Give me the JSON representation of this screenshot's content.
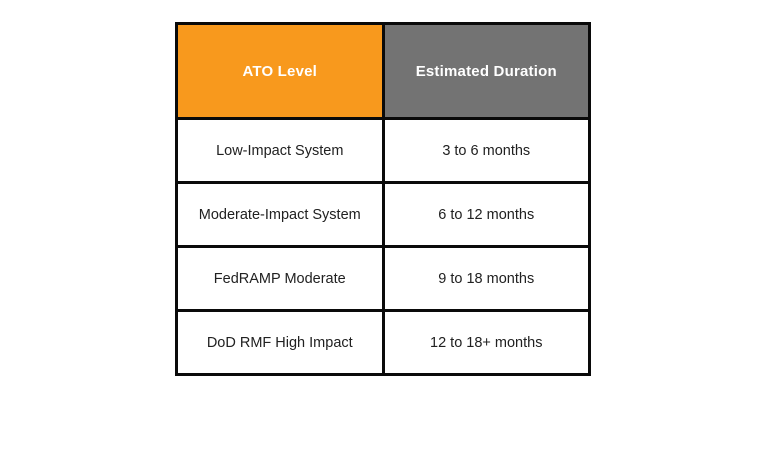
{
  "colors": {
    "header_level_bg": "#F8991D",
    "header_duration_bg": "#737373",
    "border": "#0A0A0A",
    "header_text": "#FFFFFF",
    "body_text": "#212121",
    "page_bg": "#FFFFFF"
  },
  "table": {
    "headers": [
      "ATO Level",
      "Estimated Duration"
    ],
    "rows": [
      {
        "cells": [
          "Low-Impact System",
          "3 to 6 months"
        ]
      },
      {
        "cells": [
          "Moderate-Impact System",
          "6 to 12 months"
        ]
      },
      {
        "cells": [
          "FedRAMP Moderate",
          "9 to 18 months"
        ]
      },
      {
        "cells": [
          "DoD RMF High Impact",
          "12 to 18+ months"
        ]
      }
    ]
  },
  "chart_data": {
    "type": "table",
    "title": "",
    "columns": [
      "ATO Level",
      "Estimated Duration"
    ],
    "rows": [
      [
        "Low-Impact System",
        "3 to 6 months"
      ],
      [
        "Moderate-Impact System",
        "6 to 12 months"
      ],
      [
        "FedRAMP Moderate",
        "9 to 18 months"
      ],
      [
        "DoD RMF High Impact",
        "12 to 18+ months"
      ]
    ],
    "duration_months": [
      {
        "level": "Low-Impact System",
        "min": 3,
        "max": 6,
        "max_open_ended": false
      },
      {
        "level": "Moderate-Impact System",
        "min": 6,
        "max": 12,
        "max_open_ended": false
      },
      {
        "level": "FedRAMP Moderate",
        "min": 9,
        "max": 18,
        "max_open_ended": false
      },
      {
        "level": "DoD RMF High Impact",
        "min": 12,
        "max": 18,
        "max_open_ended": true
      }
    ],
    "layout": {
      "header_colors": [
        "#F8991D",
        "#737373"
      ],
      "grid": true,
      "legend": "none"
    }
  }
}
